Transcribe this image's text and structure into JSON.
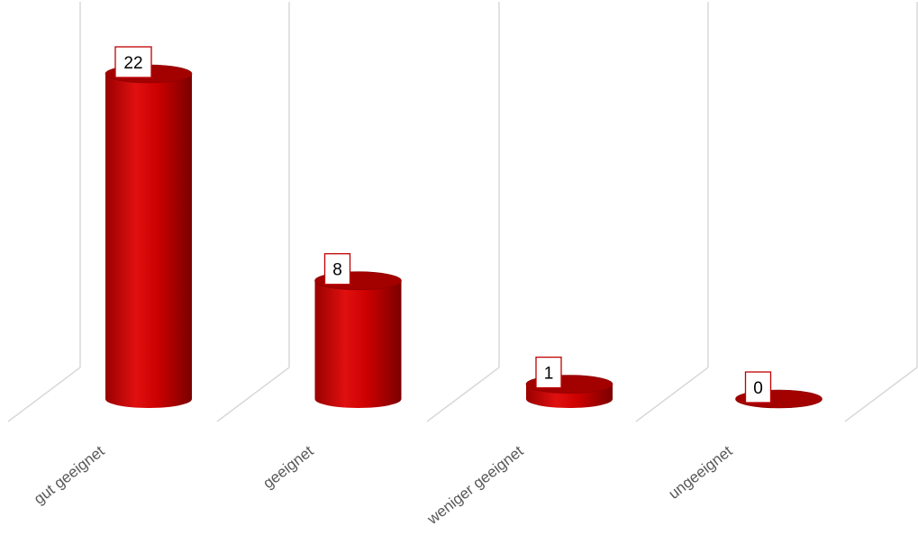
{
  "chart_data": {
    "type": "bar",
    "shape": "cylinder-3d",
    "categories": [
      "gut geeignet",
      "geeignet",
      "weniger geeignet",
      "ungeeignet"
    ],
    "values": [
      22,
      8,
      1,
      0
    ],
    "title": "",
    "xlabel": "",
    "ylabel": "",
    "ylim": [
      0,
      22
    ],
    "grid": true,
    "legend": "none",
    "colors": {
      "bar": "#c00000",
      "bar_dark": "#7a0000",
      "bar_light": "#e02020",
      "top": "#a30000",
      "grid": "#d9d9d9",
      "label_border": "#c00000",
      "category_text": "#595959"
    }
  }
}
